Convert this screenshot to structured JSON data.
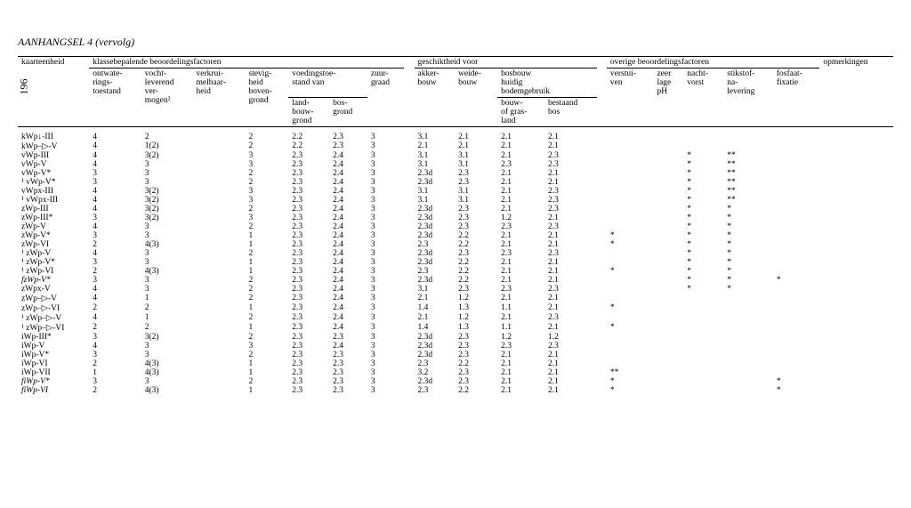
{
  "page_number": "196",
  "page_title_prefix": "AANHANGSEL 4",
  "page_title_suffix": "(vervolg)",
  "group_headers": {
    "kaarteenheid": "kaarteenheid",
    "klasse": "klassebepalende beoordelingsfactoren",
    "geschikt": "geschiktheid voor",
    "overige": "overige beoordelingsfactoren",
    "opmerk": "opmerkingen"
  },
  "col_headers": {
    "ontwat": "ontwate-\nrings-\ntoestand",
    "vocht": "vocht-\nleverend\nver-\nmogen²",
    "verkrui": "verkrui-\nmelbaar-\nheid",
    "stevig": "stevig-\nheid\nboven-\ngrond",
    "voeding": "voedingstoe-\nstand van",
    "land": "land-\nbouw-\ngrond",
    "bos": "bos-\ngrond",
    "zuur": "zuur-\ngraad",
    "akker": "akker-\nbouw",
    "weide": "weide-\nbouw",
    "bosbouw": "bosbouw\nhuidig\nbodemgebruik",
    "bouwgras": "bouw-\nof gras-\nland",
    "bestaand": "bestaand\nbos",
    "verstui": "verstui-\nven",
    "ph": "zeer\nlage\npH",
    "nacht": "nacht-\nvorst",
    "stik": "stikstof-\nna-\nlevering",
    "fosf": "fosfaat-\nfixatie"
  },
  "rows": [
    {
      "k": "kWp↓-III",
      "c": [
        "4",
        "2",
        "",
        "2",
        "2.2",
        "2.3",
        "3",
        "3.1",
        "2.1",
        "2.1",
        "2.1",
        "",
        "",
        "",
        "",
        ""
      ]
    },
    {
      "k": "kWp–▷-V",
      "c": [
        "4",
        "1(2)",
        "",
        "2",
        "2.2",
        "2.3",
        "3",
        "2.1",
        "2.1",
        "2.1",
        "2.1",
        "",
        "",
        "",
        "",
        ""
      ]
    },
    {
      "k": "vWp-III",
      "c": [
        "4",
        "3(2)",
        "",
        "3",
        "2.3",
        "2.4",
        "3",
        "3.1",
        "3.1",
        "2.1",
        "2.3",
        "",
        "",
        "*",
        "**",
        ""
      ]
    },
    {
      "k": "vWp-V",
      "c": [
        "4",
        "3",
        "",
        "3",
        "2.3",
        "2.4",
        "3",
        "3.1",
        "3.1",
        "2.3",
        "2.3",
        "",
        "",
        "*",
        "**",
        ""
      ]
    },
    {
      "k": "vWp-V*",
      "c": [
        "3",
        "3",
        "",
        "2",
        "2.3",
        "2.4",
        "3",
        "2.3d",
        "2.3",
        "2.1",
        "2.1",
        "",
        "",
        "*",
        "**",
        ""
      ]
    },
    {
      "k": "¹ vWp-V*",
      "c": [
        "3",
        "3",
        "",
        "2",
        "2.3",
        "2.4",
        "3",
        "2.3d",
        "2.3",
        "2.1",
        "2.1",
        "",
        "",
        "*",
        "**",
        ""
      ]
    },
    {
      "k": "vWpx-III",
      "c": [
        "4",
        "3(2)",
        "",
        "3",
        "2.3",
        "2.4",
        "3",
        "3.1",
        "3.1",
        "2.1",
        "2.3",
        "",
        "",
        "*",
        "**",
        ""
      ]
    },
    {
      "k": "¹ vWpx-III",
      "c": [
        "4",
        "3(2)",
        "",
        "3",
        "2.3",
        "2.4",
        "3",
        "3.1",
        "3.1",
        "2.1",
        "2.3",
        "",
        "",
        "*",
        "**",
        ""
      ]
    },
    {
      "k": "zWp-III",
      "c": [
        "4",
        "3(2)",
        "",
        "2",
        "2.3",
        "2.4",
        "3",
        "2.3d",
        "2.3",
        "2.1",
        "2.3",
        "",
        "",
        "*",
        "*",
        ""
      ]
    },
    {
      "k": "zWp-III*",
      "c": [
        "3",
        "3(2)",
        "",
        "3",
        "2.3",
        "2.4",
        "3",
        "2.3d",
        "2.3",
        "1.2",
        "2.1",
        "",
        "",
        "*",
        "*",
        ""
      ]
    },
    {
      "k": "zWp-V",
      "c": [
        "4",
        "3",
        "",
        "2",
        "2.3",
        "2.4",
        "3",
        "2.3d",
        "2.3",
        "2.3",
        "2.3",
        "",
        "",
        "*",
        "*",
        ""
      ]
    },
    {
      "k": "zWp-V*",
      "c": [
        "3",
        "3",
        "",
        "1",
        "2.3",
        "2.4",
        "3",
        "2.3d",
        "2.2",
        "2.1",
        "2.1",
        "*",
        "",
        "*",
        "*",
        ""
      ]
    },
    {
      "k": "zWp-VI",
      "c": [
        "2",
        "4(3)",
        "",
        "1",
        "2.3",
        "2.4",
        "3",
        "2.3",
        "2.2",
        "2.1",
        "2.1",
        "*",
        "",
        "*",
        "*",
        ""
      ]
    },
    {
      "k": "¹ zWp-V",
      "c": [
        "4",
        "3",
        "",
        "2",
        "2.3",
        "2.4",
        "3",
        "2.3d",
        "2.3",
        "2.3",
        "2.3",
        "",
        "",
        "*",
        "*",
        ""
      ]
    },
    {
      "k": "¹ zWp-V*",
      "c": [
        "3",
        "3",
        "",
        "1",
        "2.3",
        "2.4",
        "3",
        "2.3d",
        "2.2",
        "2.1",
        "2.1",
        "",
        "",
        "*",
        "*",
        ""
      ]
    },
    {
      "k": "¹ zWp-VI",
      "c": [
        "2",
        "4(3)",
        "",
        "1",
        "2.3",
        "2.4",
        "3",
        "2.3",
        "2.2",
        "2.1",
        "2.1",
        "*",
        "",
        "*",
        "*",
        ""
      ]
    },
    {
      "k": "fzWp-V*",
      "c": [
        "3",
        "3",
        "",
        "2",
        "2.3",
        "2.4",
        "3",
        "2.3d",
        "2.2",
        "2.1",
        "2.1",
        "",
        "",
        "*",
        "*",
        "*"
      ]
    },
    {
      "k": "zWpx-V",
      "c": [
        "4",
        "3",
        "",
        "2",
        "2.3",
        "2.4",
        "3",
        "3.1",
        "2.3",
        "2.3",
        "2.3",
        "",
        "",
        "*",
        "*",
        ""
      ]
    },
    {
      "k": "zWp–▷-V",
      "c": [
        "4",
        "1",
        "",
        "2",
        "2.3",
        "2.4",
        "3",
        "2.1",
        "1.2",
        "2.1",
        "2.1",
        "",
        "",
        "",
        "",
        ""
      ]
    },
    {
      "k": "zWp–▷-VI",
      "c": [
        "2",
        "2",
        "",
        "1",
        "2.3",
        "2.4",
        "3",
        "1.4",
        "1.3",
        "1.1",
        "2.1",
        "*",
        "",
        "",
        "",
        ""
      ]
    },
    {
      "k": "¹ zWp–▷-V",
      "c": [
        "4",
        "1",
        "",
        "2",
        "2.3",
        "2.4",
        "3",
        "2.1",
        "1.2",
        "2.1",
        "2.3",
        "",
        "",
        "",
        "",
        ""
      ]
    },
    {
      "k": "¹ zWp–▷-VI",
      "c": [
        "2",
        "2",
        "",
        "1",
        "2.3",
        "2.4",
        "3",
        "1.4",
        "1.3",
        "1.1",
        "2.1",
        "*",
        "",
        "",
        "",
        ""
      ]
    },
    {
      "k": "iWp-III*",
      "c": [
        "3",
        "3(2)",
        "",
        "2",
        "2.3",
        "2.3",
        "3",
        "2.3d",
        "2.3",
        "1.2",
        "1.2",
        "",
        "",
        "",
        "",
        ""
      ]
    },
    {
      "k": "iWp-V",
      "c": [
        "4",
        "3",
        "",
        "3",
        "2.3",
        "2.4",
        "3",
        "2.3d",
        "2.3",
        "2.3",
        "2.3",
        "",
        "",
        "",
        "",
        ""
      ]
    },
    {
      "k": "iWp-V*",
      "c": [
        "3",
        "3",
        "",
        "2",
        "2.3",
        "2.3",
        "3",
        "2.3d",
        "2.3",
        "2.1",
        "2.1",
        "",
        "",
        "",
        "",
        ""
      ]
    },
    {
      "k": "iWp-VI",
      "c": [
        "2",
        "4(3)",
        "",
        "1",
        "2.3",
        "2.3",
        "3",
        "2.3",
        "2.2",
        "2.1",
        "2.1",
        "",
        "",
        "",
        "",
        ""
      ]
    },
    {
      "k": "iWp-VII",
      "c": [
        "1",
        "4(3)",
        "",
        "1",
        "2.3",
        "2.3",
        "3",
        "3.2",
        "2.3",
        "2.1",
        "2.1",
        "**",
        "",
        "",
        "",
        ""
      ]
    },
    {
      "k": "fiWp-V*",
      "c": [
        "3",
        "3",
        "",
        "2",
        "2.3",
        "2.3",
        "3",
        "2.3d",
        "2.3",
        "2.1",
        "2.1",
        "*",
        "",
        "",
        "",
        "*"
      ]
    },
    {
      "k": "fiWp-VI",
      "c": [
        "2",
        "4(3)",
        "",
        "1",
        "2.3",
        "2.3",
        "3",
        "2.3",
        "2.2",
        "2.1",
        "2.1",
        "*",
        "",
        "",
        "",
        "*"
      ]
    }
  ]
}
